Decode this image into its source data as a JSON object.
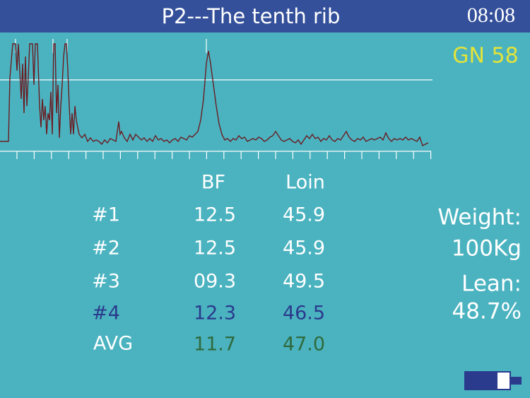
{
  "header": {
    "title": "P2---The tenth rib",
    "time": "08:08"
  },
  "status": {
    "gn": "GN 58"
  },
  "table": {
    "columns": [
      "BF",
      "Loin"
    ],
    "rows": [
      {
        "label": "#1",
        "bf": "12.5",
        "loin": "45.9"
      },
      {
        "label": "#2",
        "bf": "12.5",
        "loin": "45.9"
      },
      {
        "label": "#3",
        "bf": "09.3",
        "loin": "49.5"
      },
      {
        "label": "#4",
        "bf": "12.3",
        "loin": "46.5"
      },
      {
        "label": "AVG",
        "bf": "11.7",
        "loin": "47.0"
      }
    ]
  },
  "summary": {
    "weight_label": "Weight:",
    "weight": "100Kg",
    "lean_label": "Lean:",
    "lean": "48.7%"
  }
}
